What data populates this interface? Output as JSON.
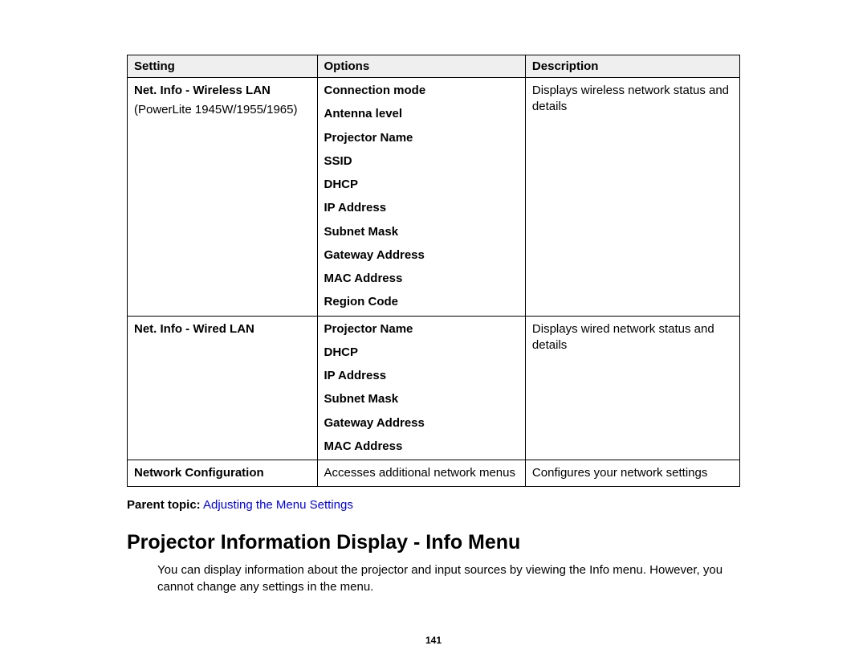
{
  "table": {
    "headers": [
      "Setting",
      "Options",
      "Description"
    ],
    "rows": [
      {
        "setting_title": "Net. Info - Wireless LAN",
        "setting_sub": "(PowerLite 1945W/1955/1965)",
        "options": [
          "Connection mode",
          "Antenna level",
          "Projector Name",
          "SSID",
          "DHCP",
          "IP Address",
          "Subnet Mask",
          "Gateway Address",
          "MAC Address",
          "Region Code"
        ],
        "options_bold": true,
        "description": "Displays wireless network status and details"
      },
      {
        "setting_title": "Net. Info - Wired LAN",
        "setting_sub": "",
        "options": [
          "Projector Name",
          "DHCP",
          "IP Address",
          "Subnet Mask",
          "Gateway Address",
          "MAC Address"
        ],
        "options_bold": true,
        "description": "Displays wired network status and details"
      },
      {
        "setting_title": "Network Configuration",
        "setting_sub": "",
        "options_plain": "Accesses additional network menus",
        "options_bold": false,
        "description": "Configures your network settings"
      }
    ]
  },
  "parent_topic": {
    "label": "Parent topic:",
    "link": "Adjusting the Menu Settings"
  },
  "section": {
    "heading": "Projector Information Display - Info Menu",
    "body": "You can display information about the projector and input sources by viewing the Info menu. However, you cannot change any settings in the menu."
  },
  "page_number": "141"
}
